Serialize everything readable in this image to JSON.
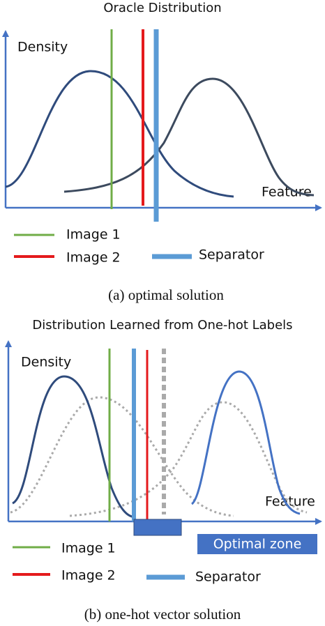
{
  "panels": [
    {
      "title": "Oracle Distribution",
      "y_label": "Density",
      "x_label": "Feature",
      "legend": [
        "Image 1",
        "Image 2",
        "Separator"
      ],
      "caption": "(a) optimal solution"
    },
    {
      "title": "Distribution Learned from One-hot Labels",
      "y_label": "Density",
      "x_label": "Feature",
      "legend": [
        "Image 1",
        "Image 2",
        "Separator"
      ],
      "zone_label": "Optimal zone",
      "caption": "(b) one-hot vector solution"
    }
  ]
}
